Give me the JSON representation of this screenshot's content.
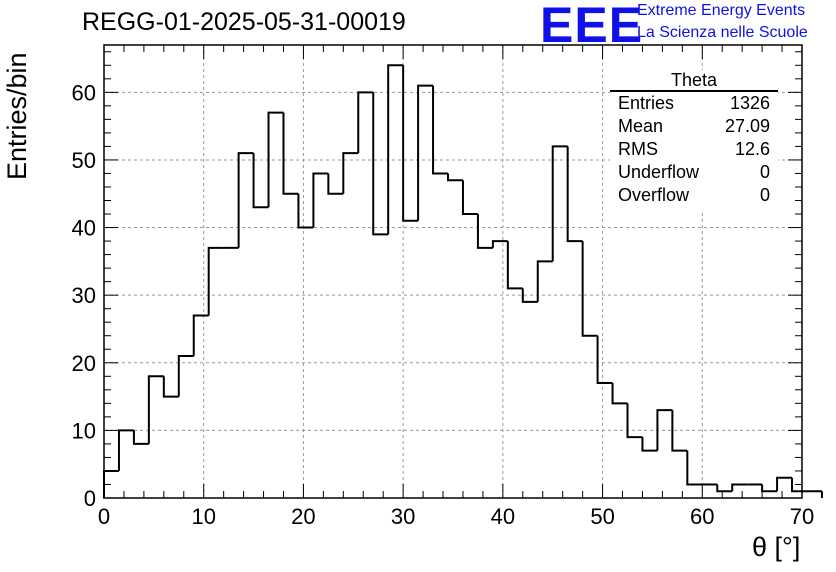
{
  "chart_data": {
    "type": "histogram",
    "title": "REGG-01-2025-05-31-00019",
    "xlabel": "θ [°]",
    "ylabel": "Entries/bin",
    "xlim": [
      0,
      70
    ],
    "ylim": [
      0,
      67
    ],
    "grid": true,
    "bin_width": 1.5,
    "bin_start": 0,
    "values": [
      4,
      10,
      8,
      18,
      15,
      21,
      27,
      37,
      37,
      51,
      43,
      57,
      45,
      40,
      48,
      45,
      51,
      60,
      39,
      64,
      41,
      61,
      48,
      47,
      42,
      37,
      38,
      31,
      29,
      35,
      52,
      38,
      24,
      17,
      14,
      9,
      7,
      13,
      7,
      2,
      2,
      1,
      2,
      2,
      1,
      3,
      1,
      1
    ],
    "x_ticks": [
      0,
      10,
      20,
      30,
      40,
      50,
      60,
      70
    ],
    "y_ticks": [
      0,
      10,
      20,
      30,
      40,
      50,
      60
    ],
    "x_tick_labels": [
      "0",
      "10",
      "20",
      "30",
      "40",
      "50",
      "60",
      "70"
    ],
    "y_tick_labels": [
      "0",
      "10",
      "20",
      "30",
      "40",
      "50",
      "60"
    ],
    "stats": {
      "name": "Theta",
      "rows": [
        {
          "label": "Entries",
          "value": "1326"
        },
        {
          "label": "Mean",
          "value": "27.09"
        },
        {
          "label": "RMS",
          "value": "12.6"
        },
        {
          "label": "Underflow",
          "value": "0"
        },
        {
          "label": "Overflow",
          "value": "0"
        }
      ]
    }
  },
  "logo": {
    "text": "EEE",
    "line1": "Extreme Energy Events",
    "line2": "La Scienza nelle Scuole",
    "color": "#1010e8"
  }
}
